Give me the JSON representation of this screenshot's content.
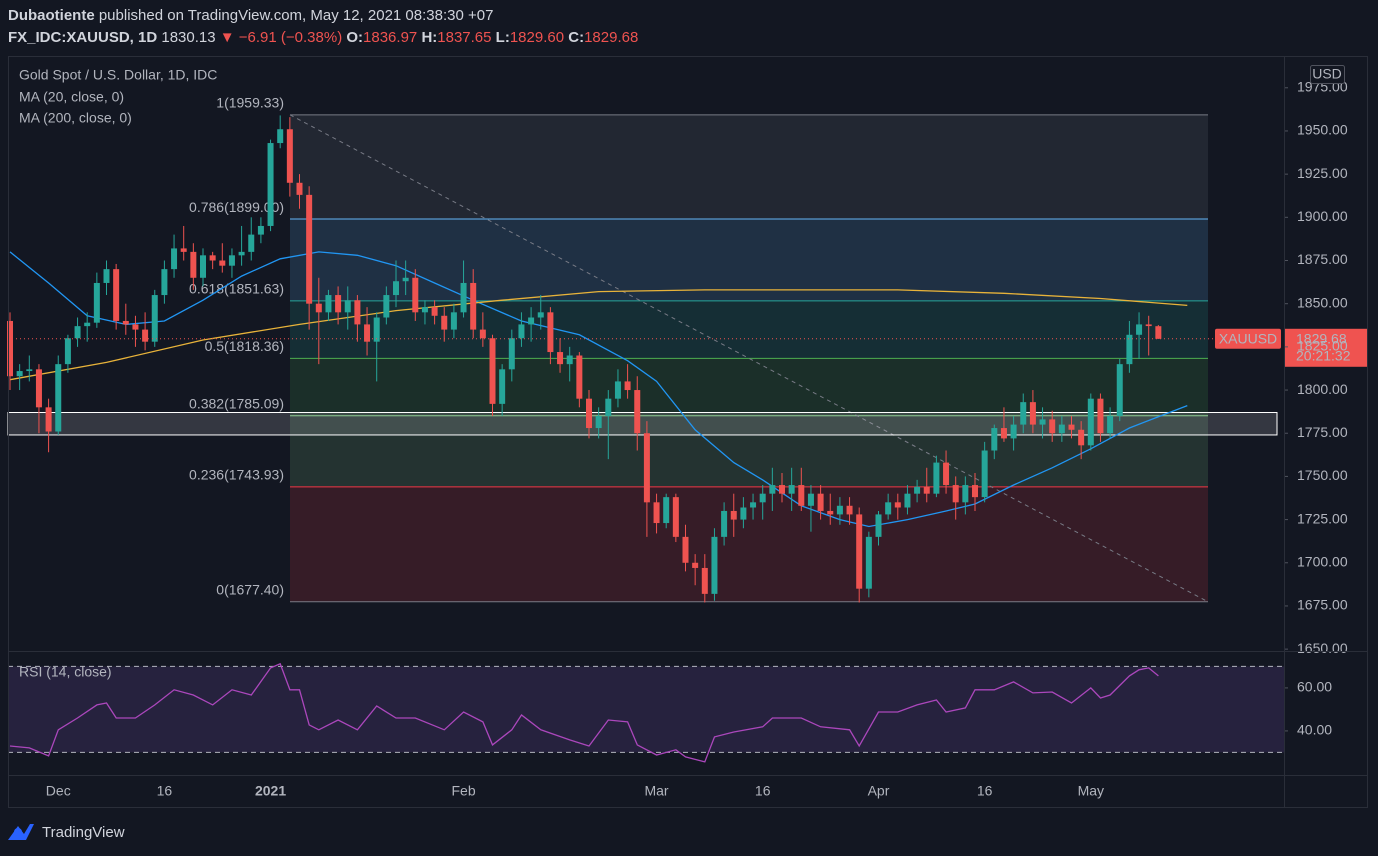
{
  "header": {
    "publisher_name": "Dubaotiente",
    "publisher_rest": "published on TradingView.com, May 12, 2021 08:38:30 +07",
    "symbol": "FX_IDC:XAUUSD, 1D",
    "price": "1830.13",
    "change": "▼ −6.91 (−0.38%)",
    "o_label": "O:",
    "o": "1836.97",
    "h_label": "H:",
    "h": "1837.65",
    "l_label": "L:",
    "l": "1829.60",
    "c_label": "C:",
    "c": "1829.68"
  },
  "chart_data": {
    "type": "candlestick",
    "title": "Gold Spot / U.S. Dollar, 1D, IDC",
    "currency": "USD",
    "symbol": "XAUUSD",
    "countdown": "20:21:32",
    "up_color": "#26a69a",
    "down_color": "#ef5350",
    "candles": [
      [
        1840,
        1845,
        1800,
        1808
      ],
      [
        1808,
        1815,
        1800,
        1811
      ],
      [
        1811,
        1820,
        1805,
        1812
      ],
      [
        1812,
        1815,
        1775,
        1790
      ],
      [
        1790,
        1795,
        1764,
        1776
      ],
      [
        1776,
        1820,
        1774,
        1815
      ],
      [
        1815,
        1832,
        1810,
        1830
      ],
      [
        1830,
        1842,
        1825,
        1837
      ],
      [
        1837,
        1845,
        1828,
        1839
      ],
      [
        1839,
        1868,
        1836,
        1862
      ],
      [
        1862,
        1875,
        1855,
        1870
      ],
      [
        1870,
        1873,
        1835,
        1840
      ],
      [
        1840,
        1850,
        1832,
        1838
      ],
      [
        1838,
        1843,
        1825,
        1835
      ],
      [
        1835,
        1845,
        1823,
        1828
      ],
      [
        1828,
        1858,
        1825,
        1855
      ],
      [
        1855,
        1875,
        1850,
        1870
      ],
      [
        1870,
        1890,
        1865,
        1882
      ],
      [
        1882,
        1895,
        1875,
        1880
      ],
      [
        1880,
        1885,
        1858,
        1865
      ],
      [
        1865,
        1882,
        1860,
        1878
      ],
      [
        1878,
        1880,
        1870,
        1875
      ],
      [
        1875,
        1885,
        1868,
        1872
      ],
      [
        1872,
        1882,
        1865,
        1878
      ],
      [
        1878,
        1895,
        1872,
        1880
      ],
      [
        1880,
        1900,
        1875,
        1890
      ],
      [
        1890,
        1900,
        1885,
        1895
      ],
      [
        1895,
        1945,
        1892,
        1943
      ],
      [
        1943,
        1959,
        1940,
        1951
      ],
      [
        1951,
        1958,
        1912,
        1920
      ],
      [
        1920,
        1925,
        1905,
        1913
      ],
      [
        1913,
        1918,
        1835,
        1850
      ],
      [
        1850,
        1865,
        1815,
        1845
      ],
      [
        1845,
        1858,
        1840,
        1855
      ],
      [
        1855,
        1860,
        1838,
        1845
      ],
      [
        1845,
        1860,
        1835,
        1852
      ],
      [
        1852,
        1855,
        1828,
        1838
      ],
      [
        1838,
        1848,
        1820,
        1828
      ],
      [
        1828,
        1845,
        1805,
        1842
      ],
      [
        1842,
        1860,
        1838,
        1855
      ],
      [
        1855,
        1875,
        1848,
        1863
      ],
      [
        1863,
        1875,
        1855,
        1865
      ],
      [
        1865,
        1870,
        1840,
        1845
      ],
      [
        1845,
        1852,
        1838,
        1848
      ],
      [
        1848,
        1852,
        1838,
        1843
      ],
      [
        1843,
        1848,
        1828,
        1835
      ],
      [
        1835,
        1850,
        1830,
        1845
      ],
      [
        1845,
        1875,
        1842,
        1862
      ],
      [
        1862,
        1870,
        1830,
        1835
      ],
      [
        1835,
        1845,
        1825,
        1830
      ],
      [
        1830,
        1832,
        1785,
        1792
      ],
      [
        1792,
        1815,
        1785,
        1812
      ],
      [
        1812,
        1835,
        1805,
        1830
      ],
      [
        1830,
        1845,
        1825,
        1838
      ],
      [
        1838,
        1848,
        1828,
        1842
      ],
      [
        1842,
        1855,
        1835,
        1845
      ],
      [
        1845,
        1848,
        1815,
        1822
      ],
      [
        1822,
        1830,
        1810,
        1815
      ],
      [
        1815,
        1825,
        1805,
        1820
      ],
      [
        1820,
        1822,
        1790,
        1795
      ],
      [
        1795,
        1800,
        1772,
        1778
      ],
      [
        1778,
        1790,
        1772,
        1785
      ],
      [
        1785,
        1800,
        1760,
        1795
      ],
      [
        1795,
        1812,
        1790,
        1805
      ],
      [
        1805,
        1815,
        1795,
        1800
      ],
      [
        1800,
        1808,
        1765,
        1775
      ],
      [
        1775,
        1782,
        1715,
        1735
      ],
      [
        1735,
        1740,
        1717,
        1723
      ],
      [
        1723,
        1740,
        1720,
        1738
      ],
      [
        1738,
        1740,
        1712,
        1715
      ],
      [
        1715,
        1722,
        1695,
        1700
      ],
      [
        1700,
        1705,
        1687,
        1697
      ],
      [
        1697,
        1705,
        1677,
        1682
      ],
      [
        1682,
        1720,
        1678,
        1715
      ],
      [
        1715,
        1735,
        1710,
        1730
      ],
      [
        1730,
        1740,
        1715,
        1725
      ],
      [
        1725,
        1738,
        1720,
        1732
      ],
      [
        1732,
        1740,
        1725,
        1735
      ],
      [
        1735,
        1745,
        1725,
        1740
      ],
      [
        1740,
        1755,
        1730,
        1745
      ],
      [
        1745,
        1752,
        1735,
        1740
      ],
      [
        1740,
        1755,
        1730,
        1745
      ],
      [
        1745,
        1755,
        1730,
        1733
      ],
      [
        1733,
        1745,
        1718,
        1740
      ],
      [
        1740,
        1745,
        1725,
        1730
      ],
      [
        1730,
        1740,
        1722,
        1728
      ],
      [
        1728,
        1738,
        1722,
        1733
      ],
      [
        1733,
        1738,
        1722,
        1728
      ],
      [
        1728,
        1732,
        1677,
        1685
      ],
      [
        1685,
        1718,
        1680,
        1715
      ],
      [
        1715,
        1730,
        1710,
        1728
      ],
      [
        1728,
        1740,
        1725,
        1735
      ],
      [
        1735,
        1740,
        1725,
        1732
      ],
      [
        1732,
        1745,
        1728,
        1740
      ],
      [
        1740,
        1748,
        1735,
        1744
      ],
      [
        1744,
        1755,
        1735,
        1740
      ],
      [
        1740,
        1762,
        1738,
        1758
      ],
      [
        1758,
        1765,
        1740,
        1745
      ],
      [
        1745,
        1750,
        1725,
        1735
      ],
      [
        1735,
        1750,
        1728,
        1745
      ],
      [
        1745,
        1752,
        1730,
        1738
      ],
      [
        1738,
        1770,
        1735,
        1765
      ],
      [
        1765,
        1780,
        1760,
        1778
      ],
      [
        1778,
        1790,
        1770,
        1772
      ],
      [
        1772,
        1785,
        1765,
        1780
      ],
      [
        1780,
        1798,
        1775,
        1793
      ],
      [
        1793,
        1800,
        1775,
        1780
      ],
      [
        1780,
        1790,
        1772,
        1783
      ],
      [
        1783,
        1788,
        1770,
        1775
      ],
      [
        1775,
        1785,
        1770,
        1780
      ],
      [
        1780,
        1785,
        1772,
        1777
      ],
      [
        1777,
        1782,
        1760,
        1768
      ],
      [
        1768,
        1798,
        1765,
        1795
      ],
      [
        1795,
        1798,
        1770,
        1775
      ],
      [
        1775,
        1790,
        1772,
        1785
      ],
      [
        1785,
        1818,
        1782,
        1815
      ],
      [
        1815,
        1840,
        1810,
        1832
      ],
      [
        1832,
        1845,
        1818,
        1838
      ],
      [
        1838,
        1843,
        1820,
        1837.04
      ],
      [
        1836.97,
        1837.65,
        1829.6,
        1829.68
      ]
    ],
    "ylim": [
      1649.5,
      1993.4
    ],
    "yticks": [
      {
        "value": 1975,
        "label": "1975.00"
      },
      {
        "value": 1950,
        "label": "1950.00"
      },
      {
        "value": 1925,
        "label": "1925.00"
      },
      {
        "value": 1900,
        "label": "1900.00"
      },
      {
        "value": 1875,
        "label": "1875.00"
      },
      {
        "value": 1850,
        "label": "1850.00"
      },
      {
        "value": 1825,
        "label": "1825.00"
      },
      {
        "value": 1800,
        "label": "1800.00"
      },
      {
        "value": 1775,
        "label": "1775.00"
      },
      {
        "value": 1750,
        "label": "1750.00"
      },
      {
        "value": 1725,
        "label": "1725.00"
      },
      {
        "value": 1700,
        "label": "1700.00"
      },
      {
        "value": 1675,
        "label": "1675.00"
      },
      {
        "value": 1650,
        "label": "1650.00"
      }
    ],
    "xticks": [
      {
        "value": 5,
        "label": "Dec"
      },
      {
        "value": 16,
        "label": "16"
      },
      {
        "value": 27,
        "label": "2021"
      },
      {
        "value": 47,
        "label": "Feb"
      },
      {
        "value": 67,
        "label": "Mar"
      },
      {
        "value": 78,
        "label": "16"
      },
      {
        "value": 90,
        "label": "Apr"
      },
      {
        "value": 101,
        "label": "16"
      },
      {
        "value": 112,
        "label": "May"
      }
    ],
    "series": [
      {
        "name": "MA (20, close, 0)",
        "color": "#2196f3",
        "x": [
          0,
          4,
          8,
          12,
          16,
          20,
          24,
          28,
          32,
          36,
          40,
          44,
          48,
          53,
          59,
          64,
          67,
          71,
          75,
          78,
          82,
          86,
          89,
          93,
          97,
          100,
          104,
          108,
          112,
          116,
          122
        ],
        "values": [
          1880,
          1862,
          1843,
          1838,
          1840,
          1852,
          1866,
          1876,
          1880,
          1878,
          1872,
          1862,
          1852,
          1840,
          1832,
          1817,
          1805,
          1777,
          1758,
          1748,
          1733,
          1725,
          1721,
          1725,
          1730,
          1734,
          1745,
          1755,
          1766,
          1778,
          1791
        ]
      },
      {
        "name": "MA (200, close, 0)",
        "color": "#e8b33a",
        "x": [
          0,
          10,
          20,
          30,
          40,
          51,
          61,
          72,
          82,
          92,
          103,
          113,
          122
        ],
        "values": [
          1806,
          1816,
          1829,
          1838,
          1846,
          1852,
          1857,
          1858,
          1858,
          1858,
          1856,
          1853,
          1849
        ]
      }
    ],
    "fib": [
      {
        "value": 1959.33,
        "label": "1(1959.33)",
        "color": "#787b86"
      },
      {
        "value": 1899.0,
        "label": "0.786(1899.00)",
        "color": "#64b5f6"
      },
      {
        "value": 1851.63,
        "label": "0.618(1851.63)",
        "color": "#26a69a"
      },
      {
        "value": 1818.36,
        "label": "0.5(1818.36)",
        "color": "#4caf50"
      },
      {
        "value": 1785.09,
        "label": "0.382(1785.09)",
        "color": "#81c784"
      },
      {
        "value": 1743.93,
        "label": "0.236(1743.93)",
        "color": "#f23645"
      },
      {
        "value": 1677.4,
        "label": "0(1677.40)",
        "color": "#787b86"
      }
    ],
    "zone": [
      1774,
      1787
    ],
    "rsi": {
      "name": "RSI (14, close)",
      "color": "#ab47bc",
      "ylim": [
        19.5,
        76.7
      ],
      "yticks": [
        {
          "value": 60,
          "label": "60.00"
        },
        {
          "value": 40,
          "label": "40.00"
        }
      ],
      "bands": [
        30,
        70
      ],
      "x": [
        0,
        2,
        4,
        5,
        7,
        9,
        10,
        11,
        13,
        15,
        17,
        19,
        21,
        23,
        25,
        27,
        28,
        29,
        30,
        31,
        32,
        34,
        36,
        38,
        40,
        42,
        45,
        47,
        49,
        50,
        52,
        53,
        55,
        58,
        60,
        62,
        64,
        65,
        67,
        69,
        70,
        72,
        73,
        75,
        78,
        79,
        82,
        84,
        87,
        88,
        90,
        92,
        94,
        96,
        97,
        99,
        100,
        102,
        104,
        106,
        108,
        110,
        112,
        113,
        114,
        116,
        117,
        118,
        119
      ],
      "values": [
        33.0,
        32.1,
        28.4,
        40.5,
        46.0,
        52.1,
        53.0,
        46.0,
        46.0,
        52.1,
        59.1,
        56.7,
        52.1,
        59.1,
        56.7,
        69.3,
        71.2,
        59.1,
        59.1,
        42.8,
        40.5,
        45.1,
        40.5,
        51.6,
        46.0,
        46.0,
        40.5,
        48.8,
        44.2,
        33.5,
        40.5,
        47.4,
        40.5,
        35.8,
        33.0,
        45.1,
        44.2,
        33.5,
        28.8,
        31.2,
        27.9,
        25.6,
        37.2,
        39.5,
        41.9,
        46.0,
        46.0,
        41.9,
        40.5,
        33.0,
        48.8,
        48.8,
        52.1,
        54.4,
        48.8,
        50.7,
        59.1,
        59.1,
        62.8,
        57.7,
        58.1,
        53.0,
        60.0,
        55.3,
        56.7,
        65.6,
        68.4,
        69.3,
        65.6
      ]
    }
  },
  "footer": {
    "brand": "TradingView"
  }
}
